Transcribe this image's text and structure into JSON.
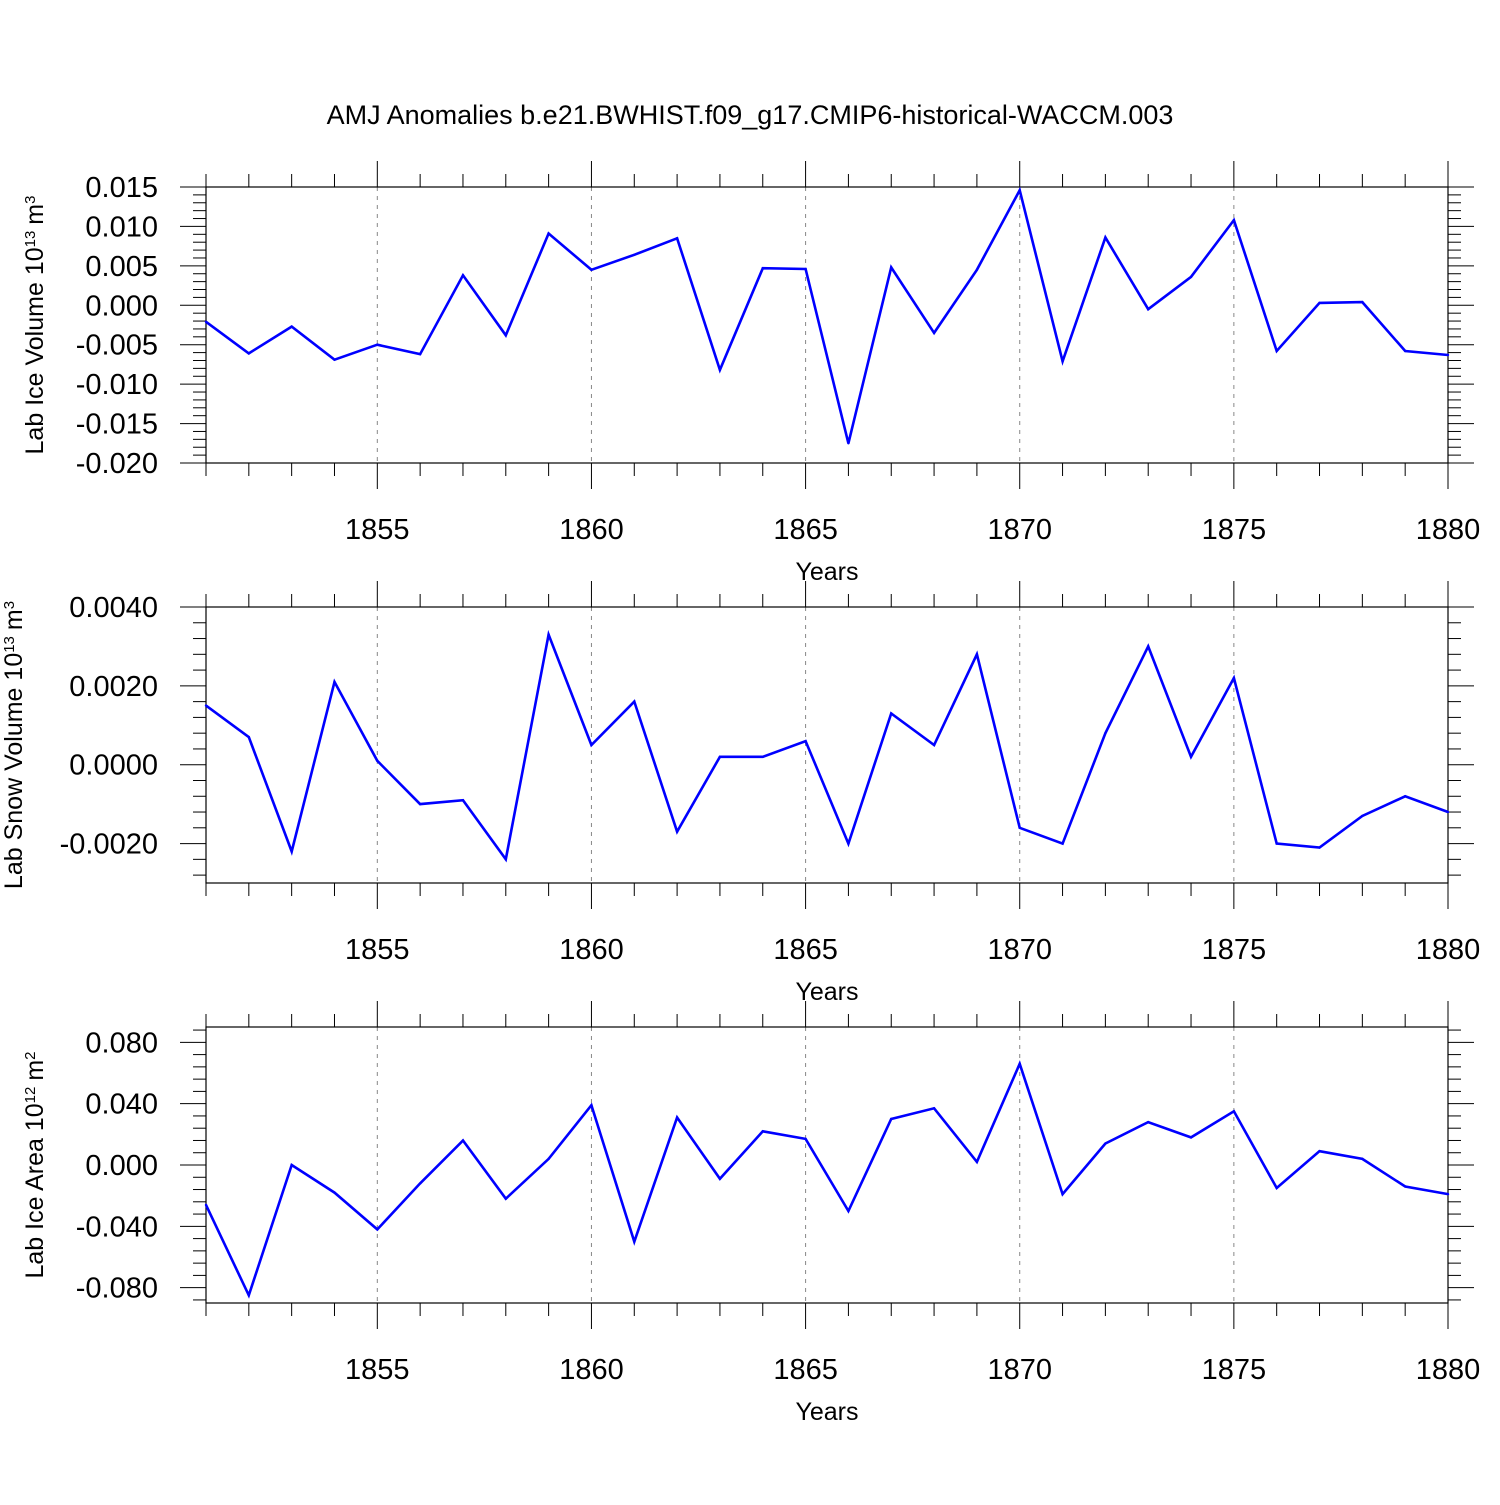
{
  "title": "AMJ Anomalies b.e21.BWHIST.f09_g17.CMIP6-historical-WACCM.003",
  "colors": {
    "line": "#0000ff",
    "axis": "#000000",
    "grid": "#888888"
  },
  "chart_data": [
    {
      "type": "line",
      "ylabel_main": "Lab Ice Volume 10",
      "ylabel_exp": "13",
      "ylabel_unit": "m",
      "ylabel_unit_exp": "3",
      "xlabel": "Years",
      "xlim": [
        1851,
        1880
      ],
      "ylim": [
        -0.02,
        0.015
      ],
      "yticks": [
        -0.02,
        -0.015,
        -0.01,
        -0.005,
        0.0,
        0.005,
        0.01,
        0.015
      ],
      "ytick_labels": [
        "-0.020",
        "-0.015",
        "-0.010",
        "-0.005",
        "0.000",
        "0.005",
        "0.010",
        "0.015"
      ],
      "xticks": [
        1855,
        1860,
        1865,
        1870,
        1875,
        1880
      ],
      "xtick_labels": [
        "1855",
        "1860",
        "1865",
        "1870",
        "1875",
        "1880"
      ],
      "x": [
        1851,
        1852,
        1853,
        1854,
        1855,
        1856,
        1857,
        1858,
        1859,
        1860,
        1861,
        1862,
        1863,
        1864,
        1865,
        1866,
        1867,
        1868,
        1869,
        1870,
        1871,
        1872,
        1873,
        1874,
        1875,
        1876,
        1877,
        1878,
        1879,
        1880
      ],
      "series": [
        {
          "name": "Lab Ice Volume",
          "values": [
            -0.0021,
            -0.0061,
            -0.0027,
            -0.0069,
            -0.005,
            -0.0062,
            0.0038,
            -0.0038,
            0.0091,
            0.0045,
            0.0064,
            0.0085,
            -0.0082,
            0.0047,
            0.0046,
            -0.0175,
            0.0048,
            -0.0035,
            0.0045,
            0.0146,
            -0.0071,
            0.0086,
            -0.0005,
            0.0036,
            0.0108,
            -0.0058,
            0.0003,
            0.0004,
            -0.0058,
            -0.0063
          ]
        }
      ]
    },
    {
      "type": "line",
      "ylabel_main": "Lab Snow Volume 10",
      "ylabel_exp": "13",
      "ylabel_unit": "m",
      "ylabel_unit_exp": "3",
      "xlabel": "Years",
      "xlim": [
        1851,
        1880
      ],
      "ylim": [
        -0.003,
        0.004
      ],
      "yticks": [
        -0.002,
        0.0,
        0.002,
        0.004
      ],
      "ytick_labels": [
        "-0.0020",
        "0.0000",
        "0.0020",
        "0.0040"
      ],
      "xticks": [
        1855,
        1860,
        1865,
        1870,
        1875,
        1880
      ],
      "xtick_labels": [
        "1855",
        "1860",
        "1865",
        "1870",
        "1875",
        "1880"
      ],
      "x": [
        1851,
        1852,
        1853,
        1854,
        1855,
        1856,
        1857,
        1858,
        1859,
        1860,
        1861,
        1862,
        1863,
        1864,
        1865,
        1866,
        1867,
        1868,
        1869,
        1870,
        1871,
        1872,
        1873,
        1874,
        1875,
        1876,
        1877,
        1878,
        1879,
        1880
      ],
      "series": [
        {
          "name": "Lab Snow Volume",
          "values": [
            0.0015,
            0.0007,
            -0.0022,
            0.0021,
            0.0001,
            -0.001,
            -0.0009,
            -0.0024,
            0.0033,
            0.0005,
            0.0016,
            -0.0017,
            0.0002,
            0.0002,
            0.0006,
            -0.002,
            0.0013,
            0.0005,
            0.0028,
            -0.0016,
            -0.002,
            0.0008,
            0.003,
            0.0002,
            0.0022,
            -0.002,
            -0.0021,
            -0.0013,
            -0.0008,
            -0.0012
          ]
        }
      ]
    },
    {
      "type": "line",
      "ylabel_main": "Lab Ice Area 10",
      "ylabel_exp": "12",
      "ylabel_unit": "m",
      "ylabel_unit_exp": "2",
      "xlabel": "Years",
      "xlim": [
        1851,
        1880
      ],
      "ylim": [
        -0.09,
        0.09
      ],
      "yticks": [
        -0.08,
        -0.04,
        0.0,
        0.04,
        0.08
      ],
      "ytick_labels": [
        "-0.080",
        "-0.040",
        "0.000",
        "0.040",
        "0.080"
      ],
      "xticks": [
        1855,
        1860,
        1865,
        1870,
        1875,
        1880
      ],
      "xtick_labels": [
        "1855",
        "1860",
        "1865",
        "1870",
        "1875",
        "1880"
      ],
      "x": [
        1851,
        1852,
        1853,
        1854,
        1855,
        1856,
        1857,
        1858,
        1859,
        1860,
        1861,
        1862,
        1863,
        1864,
        1865,
        1866,
        1867,
        1868,
        1869,
        1870,
        1871,
        1872,
        1873,
        1874,
        1875,
        1876,
        1877,
        1878,
        1879,
        1880
      ],
      "series": [
        {
          "name": "Lab Ice Area",
          "values": [
            -0.026,
            -0.085,
            0.0,
            -0.018,
            -0.042,
            -0.012,
            0.016,
            -0.022,
            0.004,
            0.039,
            -0.05,
            0.031,
            -0.009,
            0.022,
            0.017,
            -0.03,
            0.03,
            0.037,
            0.002,
            0.066,
            -0.019,
            0.014,
            0.028,
            0.018,
            0.035,
            -0.015,
            0.009,
            0.004,
            -0.014,
            -0.019
          ]
        }
      ]
    }
  ]
}
